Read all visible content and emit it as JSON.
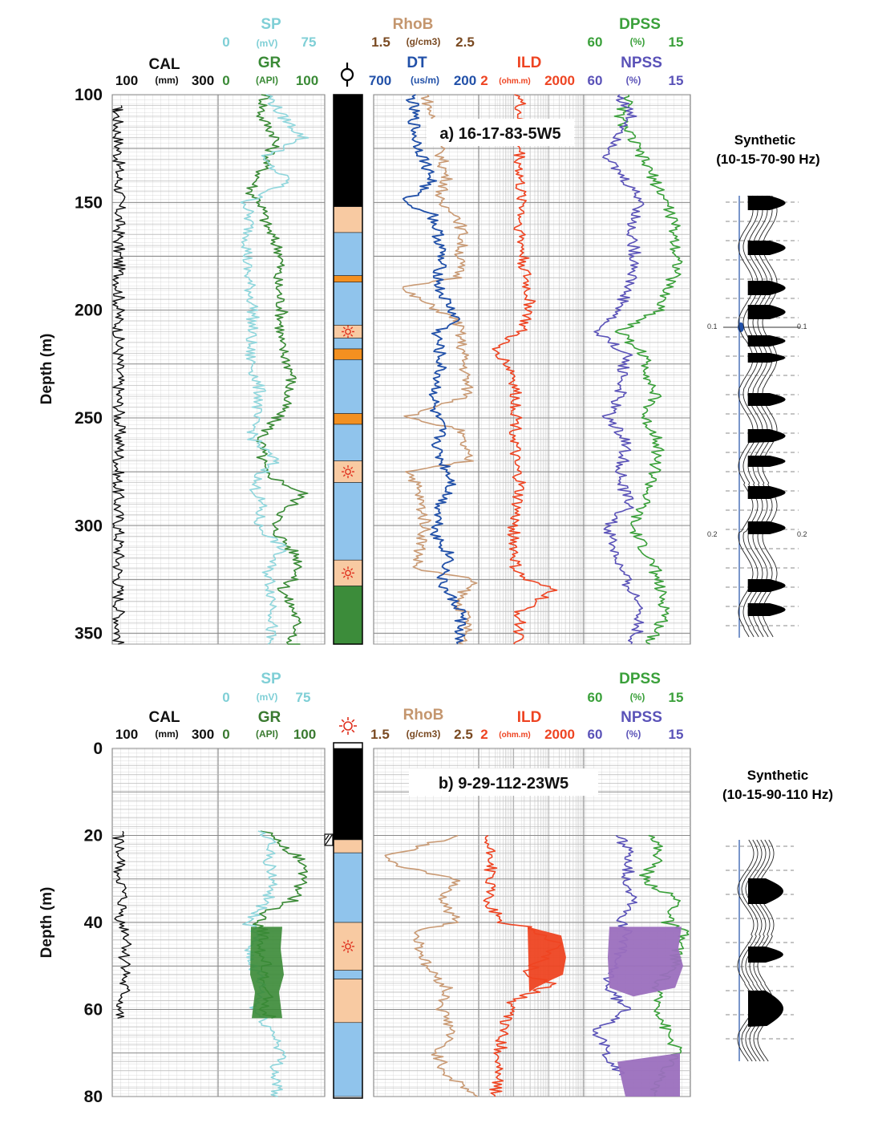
{
  "colors": {
    "cal": "#111111",
    "sp": "#8fd6dc",
    "gr": "#3a8a36",
    "rhob": "#c99a74",
    "dt": "#2150a8",
    "ild": "#ee4422",
    "dpss": "#3aa03a",
    "npss": "#5a52b8",
    "black": "#000000",
    "peach": "#f8caa2",
    "blue": "#90c4ec",
    "orange": "#f39020",
    "green": "#3c8c3a",
    "purple": "#9b6fbe",
    "grid": "#c8c8c8",
    "gridMajor": "#8a8a8a"
  },
  "symbols": {
    "well_symbol": "gas-well-icon",
    "sun_symbol": "sun-icon"
  },
  "panel_a": {
    "label": "a) 16-17-83-5W5",
    "ylabel": "Depth (m)",
    "depth_ticks": [
      "100",
      "150",
      "200",
      "250",
      "300",
      "350"
    ],
    "synthetic_title": "Synthetic",
    "synthetic_band": "(10-15-70-90 Hz)",
    "synthetic_time_labels": [
      "0.1",
      "0.1",
      "0.2",
      "0.2"
    ],
    "headers": {
      "cal": {
        "name": "CAL",
        "min": "100",
        "unit": "(mm)",
        "max": "300"
      },
      "gr": {
        "name": "GR",
        "min": "0",
        "unit": "(API)",
        "max": "100"
      },
      "sp": {
        "name": "SP",
        "min": "0",
        "unit": "(mV)",
        "max": "75"
      },
      "rhob": {
        "name": "RhoB",
        "min": "1.5",
        "unit": "(g/cm3)",
        "max": "2.5"
      },
      "dt": {
        "name": "DT",
        "min": "700",
        "unit": "(us/m)",
        "max": "200"
      },
      "ild": {
        "name": "ILD",
        "min": "2",
        "unit": "(ohm.m)",
        "max": "2000"
      },
      "dpss": {
        "name": "DPSS",
        "min": "60",
        "unit": "(%)",
        "max": "15"
      },
      "npss": {
        "name": "NPSS",
        "min": "60",
        "unit": "(%)",
        "max": "15"
      }
    }
  },
  "panel_b": {
    "label": "b) 9-29-112-23W5",
    "ylabel": "Depth (m)",
    "depth_ticks": [
      "0",
      "20",
      "40",
      "60",
      "80"
    ],
    "synthetic_title": "Synthetic",
    "synthetic_band": "(10-15-90-110 Hz)",
    "headers": {
      "cal": {
        "name": "CAL",
        "min": "100",
        "unit": "(mm)",
        "max": "300"
      },
      "gr": {
        "name": "GR",
        "min": "0",
        "unit": "(API)",
        "max": "100"
      },
      "sp": {
        "name": "SP",
        "min": "0",
        "unit": "(mV)",
        "max": "75"
      },
      "rhob": {
        "name": "RhoB",
        "min": "1.5",
        "unit": "(g/cm3)",
        "max": "2.5"
      },
      "ild": {
        "name": "ILD",
        "min": "2",
        "unit": "(ohm.m)",
        "max": "2000"
      },
      "dpss": {
        "name": "DPSS",
        "min": "60",
        "unit": "(%)",
        "max": "15"
      },
      "npss": {
        "name": "NPSS",
        "min": "60",
        "unit": "(%)",
        "max": "15"
      }
    }
  },
  "chart_data": [
    {
      "type": "line",
      "title": "a) 16-17-83-5W5",
      "ylabel": "Depth (m)",
      "ylim": [
        100,
        355
      ],
      "series": [
        {
          "name": "CAL",
          "x": [
            108,
            108,
            110,
            110,
            112,
            112,
            114,
            113,
            112,
            113,
            112,
            111,
            112,
            112,
            113,
            114,
            110,
            111,
            112,
            113,
            112,
            112,
            113,
            112,
            111
          ],
          "y": [
            105,
            107,
            107,
            115,
            125,
            140,
            145,
            160,
            170,
            185,
            200,
            210,
            220,
            240,
            250,
            265,
            277,
            290,
            300,
            310,
            320,
            330,
            340,
            350,
            355
          ]
        },
        {
          "name": "GR",
          "x": [
            45,
            40,
            55,
            42,
            30,
            40,
            45,
            60,
            55,
            60,
            58,
            70,
            62,
            40,
            42,
            80,
            50,
            75,
            78,
            60,
            72,
            75,
            65,
            75,
            70
          ],
          "y": [
            100,
            110,
            120,
            135,
            145,
            150,
            160,
            175,
            185,
            200,
            215,
            230,
            245,
            260,
            275,
            285,
            300,
            315,
            320,
            330,
            340,
            350,
            355,
            355,
            355
          ]
        },
        {
          "name": "SP",
          "x": [
            35,
            45,
            60,
            30,
            50,
            20,
            22,
            20,
            25,
            22,
            30,
            25,
            25,
            40,
            25,
            30,
            28,
            45,
            35,
            40,
            35
          ],
          "y": [
            100,
            110,
            120,
            130,
            140,
            150,
            160,
            180,
            200,
            220,
            240,
            250,
            260,
            270,
            280,
            290,
            300,
            310,
            320,
            340,
            355
          ]
        },
        {
          "name": "RhoB",
          "x": [
            2.0,
            2.1,
            2.2,
            2.1,
            2.3,
            2.35,
            2.3,
            1.75,
            2.3,
            2.35,
            2.4,
            1.8,
            2.3,
            2.4,
            1.85,
            1.9,
            2.0,
            1.9,
            2.45,
            2.3,
            2.4,
            2.35
          ],
          "y": [
            100,
            120,
            140,
            150,
            155,
            165,
            185,
            190,
            205,
            220,
            240,
            250,
            255,
            270,
            275,
            280,
            300,
            320,
            325,
            335,
            345,
            355
          ]
        },
        {
          "name": "DT",
          "x": [
            520,
            500,
            420,
            560,
            420,
            380,
            390,
            300,
            400,
            380,
            420,
            380,
            400,
            320,
            380,
            400,
            330,
            380,
            360,
            280,
            290,
            300
          ],
          "y": [
            100,
            120,
            140,
            150,
            155,
            170,
            190,
            205,
            210,
            225,
            245,
            255,
            265,
            280,
            290,
            305,
            315,
            325,
            330,
            340,
            350,
            355
          ]
        },
        {
          "name": "ILD",
          "x": [
            30,
            30,
            30,
            40,
            30,
            40,
            60,
            30,
            5,
            8,
            20,
            25,
            20,
            30,
            20,
            22,
            40,
            300,
            30,
            30,
            20
          ],
          "y": [
            100,
            120,
            145,
            150,
            160,
            180,
            200,
            210,
            218,
            220,
            230,
            250,
            270,
            280,
            300,
            320,
            325,
            330,
            340,
            350,
            355
          ]
        },
        {
          "name": "DPSS",
          "x": [
            40,
            45,
            35,
            25,
            22,
            20,
            25,
            28,
            45,
            35,
            30,
            35,
            28,
            30,
            35,
            40,
            30,
            28,
            25,
            32
          ],
          "y": [
            100,
            110,
            130,
            150,
            160,
            180,
            190,
            200,
            210,
            220,
            240,
            250,
            260,
            275,
            290,
            300,
            320,
            330,
            340,
            355
          ]
        },
        {
          "name": "NPSS",
          "x": [
            45,
            40,
            50,
            35,
            40,
            38,
            45,
            55,
            42,
            45,
            50,
            42,
            45,
            40,
            50,
            45,
            40,
            35,
            38,
            40
          ],
          "y": [
            100,
            110,
            130,
            150,
            160,
            180,
            200,
            210,
            220,
            240,
            250,
            260,
            280,
            290,
            300,
            320,
            330,
            340,
            350,
            355
          ]
        }
      ],
      "lithology": [
        {
          "top": 100,
          "base": 152,
          "type": "black"
        },
        {
          "top": 152,
          "base": 164,
          "type": "peach"
        },
        {
          "top": 164,
          "base": 184,
          "type": "blue"
        },
        {
          "top": 184,
          "base": 187,
          "type": "orange"
        },
        {
          "top": 187,
          "base": 207,
          "type": "blue"
        },
        {
          "top": 207,
          "base": 213,
          "type": "peach",
          "symbol": "sun"
        },
        {
          "top": 213,
          "base": 218,
          "type": "blue"
        },
        {
          "top": 218,
          "base": 223,
          "type": "orange"
        },
        {
          "top": 223,
          "base": 248,
          "type": "blue"
        },
        {
          "top": 248,
          "base": 253,
          "type": "orange"
        },
        {
          "top": 253,
          "base": 270,
          "type": "blue"
        },
        {
          "top": 270,
          "base": 280,
          "type": "peach",
          "symbol": "sun"
        },
        {
          "top": 280,
          "base": 316,
          "type": "blue"
        },
        {
          "top": 316,
          "base": 328,
          "type": "peach",
          "symbol": "sun"
        },
        {
          "top": 328,
          "base": 355,
          "type": "green"
        }
      ]
    },
    {
      "type": "line",
      "title": "b) 9-29-112-23W5",
      "ylabel": "Depth (m)",
      "ylim": [
        0,
        80
      ],
      "series": [
        {
          "name": "CAL",
          "x": [
            112,
            112,
            115,
            118,
            114,
            125,
            130,
            120,
            128,
            118,
            122,
            112,
            110
          ],
          "y": [
            19,
            25,
            30,
            35,
            40,
            42,
            45,
            48,
            50,
            54,
            56,
            60,
            62
          ]
        },
        {
          "name": "GR",
          "x": [
            45,
            50,
            60,
            75,
            80,
            70,
            40,
            38,
            42,
            40,
            45,
            42,
            48,
            40,
            50
          ],
          "y": [
            19,
            20,
            22,
            25,
            30,
            35,
            38,
            40,
            42,
            48,
            50,
            55,
            58,
            60,
            62
          ]
        },
        {
          "name": "SP",
          "x": [
            30,
            40,
            35,
            38,
            35,
            20,
            25,
            22,
            28,
            30,
            25,
            40,
            45,
            40,
            42
          ],
          "y": [
            19,
            22,
            25,
            30,
            35,
            40,
            42,
            48,
            52,
            56,
            60,
            66,
            70,
            74,
            80
          ]
        },
        {
          "name": "RhoB",
          "x": [
            2.3,
            1.6,
            1.7,
            2.3,
            2.15,
            2.3,
            1.9,
            2.0,
            2.2,
            2.15,
            2.25,
            2.1,
            2.2,
            2.5
          ],
          "y": [
            20,
            25,
            27,
            30,
            35,
            40,
            42,
            50,
            55,
            60,
            65,
            70,
            75,
            80
          ]
        },
        {
          "name": "ILD",
          "x": [
            3,
            4,
            5,
            4,
            4,
            8,
            50,
            400,
            40,
            300,
            20,
            12,
            8,
            6
          ],
          "y": [
            20,
            24,
            25,
            30,
            35,
            40,
            41,
            45,
            52,
            54,
            58,
            62,
            70,
            80
          ]
        },
        {
          "name": "DPSS",
          "x": [
            30,
            28,
            35,
            20,
            25,
            18,
            22,
            30,
            28,
            25,
            20,
            28,
            30
          ],
          "y": [
            20,
            25,
            30,
            35,
            40,
            42,
            50,
            55,
            60,
            65,
            70,
            75,
            80
          ]
        },
        {
          "name": "NPSS",
          "x": [
            45,
            40,
            42,
            38,
            45,
            40,
            48,
            50,
            42,
            45,
            55,
            50,
            45
          ],
          "y": [
            20,
            25,
            30,
            35,
            40,
            42,
            50,
            55,
            60,
            62,
            65,
            70,
            75
          ]
        }
      ],
      "lithology": [
        {
          "top": 0,
          "base": 21,
          "type": "black"
        },
        {
          "top": 21,
          "base": 24,
          "type": "peach"
        },
        {
          "top": 24,
          "base": 40,
          "type": "blue"
        },
        {
          "top": 40,
          "base": 51,
          "type": "peach",
          "symbol": "sun"
        },
        {
          "top": 51,
          "base": 53,
          "type": "blue"
        },
        {
          "top": 53,
          "base": 63,
          "type": "peach"
        },
        {
          "top": 63,
          "base": 80,
          "type": "blue"
        }
      ]
    }
  ]
}
